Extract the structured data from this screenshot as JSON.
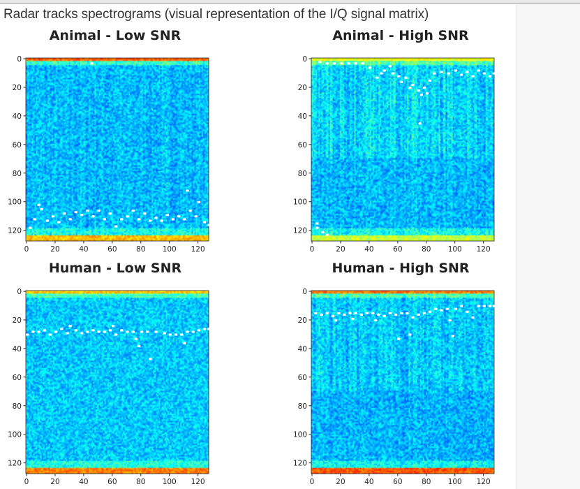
{
  "page": {
    "heading": "Radar tracks spectrograms (visual representation of the I/Q signal matrix)"
  },
  "chart_data": [
    {
      "type": "heatmap",
      "title": "Animal - Low SNR",
      "colormap": "jet",
      "xlim": [
        0,
        128
      ],
      "ylim": [
        128,
        0
      ],
      "xticks": [
        "0",
        "20",
        "40",
        "60",
        "80",
        "100",
        "120"
      ],
      "yticks": [
        "0",
        "20",
        "40",
        "60",
        "80",
        "100",
        "120"
      ],
      "track_marker_color": "#ffffff",
      "track_points": [
        [
          45,
          3
        ],
        [
          2,
          118
        ],
        [
          5,
          112
        ],
        [
          8,
          102
        ],
        [
          10,
          105
        ],
        [
          14,
          113
        ],
        [
          18,
          110
        ],
        [
          22,
          114
        ],
        [
          26,
          108
        ],
        [
          30,
          112
        ],
        [
          34,
          107
        ],
        [
          38,
          109
        ],
        [
          42,
          106
        ],
        [
          46,
          110
        ],
        [
          50,
          106
        ],
        [
          54,
          112
        ],
        [
          58,
          108
        ],
        [
          62,
          117
        ],
        [
          66,
          112
        ],
        [
          70,
          110
        ],
        [
          74,
          106
        ],
        [
          78,
          112
        ],
        [
          82,
          108
        ],
        [
          86,
          113
        ],
        [
          90,
          111
        ],
        [
          94,
          113
        ],
        [
          98,
          109
        ],
        [
          102,
          112
        ],
        [
          106,
          110
        ],
        [
          110,
          112
        ],
        [
          112,
          92
        ],
        [
          114,
          106
        ],
        [
          118,
          110
        ],
        [
          120,
          100
        ],
        [
          124,
          114
        ],
        [
          127,
          116
        ]
      ]
    },
    {
      "type": "heatmap",
      "title": "Animal - High SNR",
      "colormap": "jet",
      "xlim": [
        0,
        128
      ],
      "ylim": [
        128,
        0
      ],
      "xticks": [
        "0",
        "20",
        "40",
        "60",
        "80",
        "100",
        "120"
      ],
      "yticks": [
        "0",
        "20",
        "40",
        "60",
        "80",
        "100",
        "120"
      ],
      "track_marker_color": "#ffffff",
      "track_points": [
        [
          5,
          2
        ],
        [
          10,
          3
        ],
        [
          15,
          3
        ],
        [
          20,
          3
        ],
        [
          25,
          3
        ],
        [
          30,
          3
        ],
        [
          35,
          3
        ],
        [
          40,
          6
        ],
        [
          45,
          13
        ],
        [
          48,
          10
        ],
        [
          50,
          8
        ],
        [
          54,
          5
        ],
        [
          56,
          10
        ],
        [
          60,
          12
        ],
        [
          62,
          16
        ],
        [
          65,
          13
        ],
        [
          68,
          20
        ],
        [
          70,
          18
        ],
        [
          74,
          22
        ],
        [
          76,
          25
        ],
        [
          78,
          20
        ],
        [
          80,
          24
        ],
        [
          82,
          15
        ],
        [
          85,
          10
        ],
        [
          90,
          9
        ],
        [
          95,
          10
        ],
        [
          100,
          8
        ],
        [
          104,
          11
        ],
        [
          108,
          9
        ],
        [
          112,
          12
        ],
        [
          116,
          8
        ],
        [
          120,
          10
        ],
        [
          124,
          12
        ],
        [
          127,
          10
        ],
        [
          75,
          45
        ],
        [
          3,
          118
        ],
        [
          7,
          121
        ],
        [
          10,
          123
        ],
        [
          3,
          115
        ]
      ]
    },
    {
      "type": "heatmap",
      "title": "Human - Low SNR",
      "colormap": "jet",
      "xlim": [
        0,
        128
      ],
      "ylim": [
        128,
        0
      ],
      "xticks": [
        "0",
        "20",
        "40",
        "60",
        "80",
        "100",
        "120"
      ],
      "yticks": [
        "0",
        "20",
        "40",
        "60",
        "80",
        "100",
        "120"
      ],
      "track_marker_color": "#ffffff",
      "track_points": [
        [
          0,
          30
        ],
        [
          4,
          28
        ],
        [
          8,
          28
        ],
        [
          12,
          27
        ],
        [
          16,
          30
        ],
        [
          20,
          28
        ],
        [
          24,
          26
        ],
        [
          28,
          29
        ],
        [
          30,
          24
        ],
        [
          34,
          27
        ],
        [
          38,
          29
        ],
        [
          42,
          28
        ],
        [
          46,
          27
        ],
        [
          50,
          28
        ],
        [
          54,
          28
        ],
        [
          58,
          27
        ],
        [
          60,
          24
        ],
        [
          62,
          30
        ],
        [
          66,
          27
        ],
        [
          70,
          28
        ],
        [
          74,
          28
        ],
        [
          76,
          33
        ],
        [
          78,
          38
        ],
        [
          80,
          28
        ],
        [
          84,
          28
        ],
        [
          86,
          47
        ],
        [
          90,
          28
        ],
        [
          96,
          29
        ],
        [
          100,
          30
        ],
        [
          104,
          30
        ],
        [
          108,
          30
        ],
        [
          110,
          36
        ],
        [
          112,
          28
        ],
        [
          116,
          28
        ],
        [
          120,
          27
        ],
        [
          124,
          26
        ],
        [
          127,
          26
        ]
      ]
    },
    {
      "type": "heatmap",
      "title": "Human - High SNR",
      "colormap": "jet",
      "xlim": [
        0,
        128
      ],
      "ylim": [
        128,
        0
      ],
      "xticks": [
        "0",
        "20",
        "40",
        "60",
        "80",
        "100",
        "120"
      ],
      "yticks": [
        "0",
        "20",
        "40",
        "60",
        "80",
        "100",
        "120"
      ],
      "track_marker_color": "#ffffff",
      "track_points": [
        [
          2,
          15
        ],
        [
          6,
          16
        ],
        [
          10,
          15
        ],
        [
          14,
          17
        ],
        [
          16,
          20
        ],
        [
          18,
          15
        ],
        [
          22,
          16
        ],
        [
          26,
          15
        ],
        [
          28,
          19
        ],
        [
          30,
          15
        ],
        [
          34,
          16
        ],
        [
          38,
          15
        ],
        [
          42,
          15
        ],
        [
          44,
          20
        ],
        [
          46,
          16
        ],
        [
          50,
          17
        ],
        [
          54,
          15
        ],
        [
          58,
          16
        ],
        [
          62,
          15
        ],
        [
          60,
          33
        ],
        [
          66,
          15
        ],
        [
          68,
          30
        ],
        [
          70,
          18
        ],
        [
          74,
          16
        ],
        [
          78,
          15
        ],
        [
          82,
          14
        ],
        [
          86,
          12
        ],
        [
          90,
          13
        ],
        [
          94,
          12
        ],
        [
          96,
          20
        ],
        [
          98,
          31
        ],
        [
          100,
          12
        ],
        [
          104,
          10
        ],
        [
          108,
          14
        ],
        [
          112,
          18
        ],
        [
          116,
          10
        ],
        [
          120,
          10
        ],
        [
          124,
          10
        ],
        [
          127,
          10
        ]
      ]
    }
  ]
}
